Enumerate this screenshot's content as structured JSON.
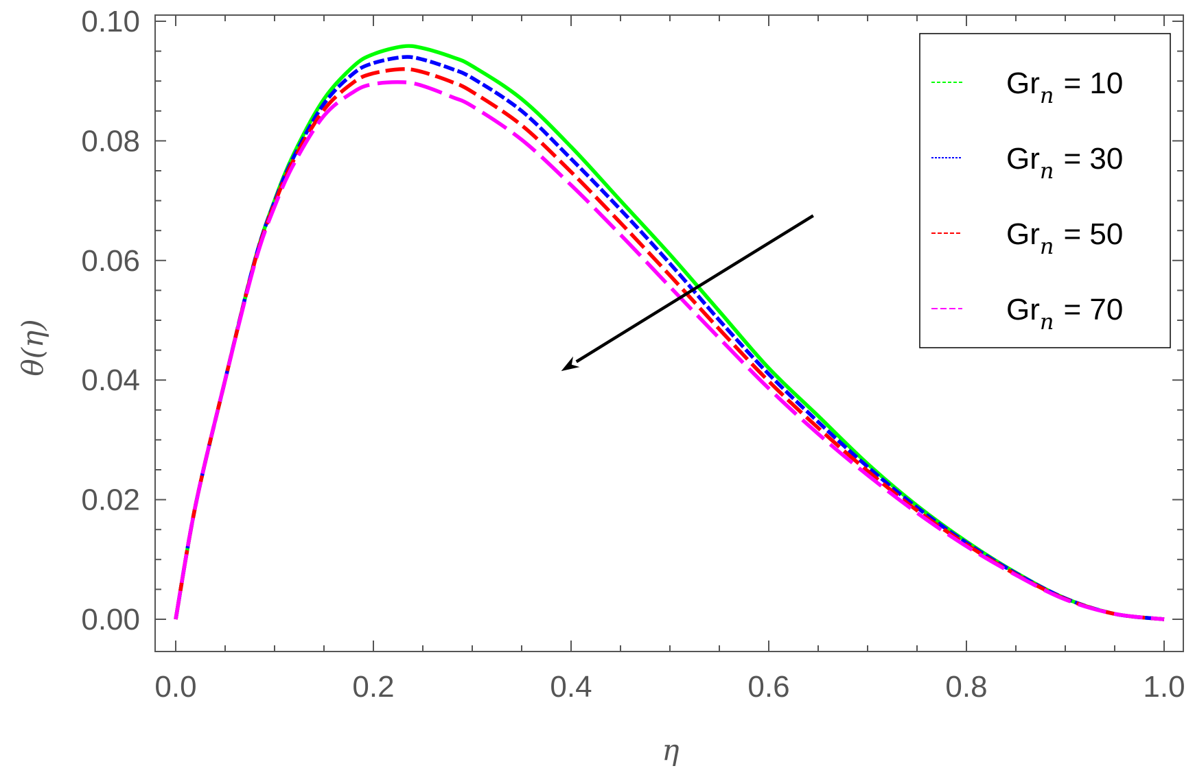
{
  "chart_data": {
    "type": "line",
    "title": "",
    "xlabel": "η",
    "ylabel": "θ(η)",
    "xlim": [
      0.0,
      1.0
    ],
    "ylim": [
      0.0,
      0.1
    ],
    "x_ticks": [
      "0.0",
      "0.2",
      "0.4",
      "0.6",
      "0.8",
      "1.0"
    ],
    "y_ticks": [
      "0.00",
      "0.02",
      "0.04",
      "0.06",
      "0.08",
      "0.10"
    ],
    "grid": false,
    "legend_position": "top-right",
    "x": [
      0.0,
      0.02,
      0.05,
      0.08,
      0.1,
      0.12,
      0.15,
      0.18,
      0.2,
      0.23,
      0.25,
      0.28,
      0.3,
      0.35,
      0.4,
      0.45,
      0.5,
      0.55,
      0.6,
      0.65,
      0.7,
      0.75,
      0.8,
      0.85,
      0.9,
      0.95,
      1.0
    ],
    "series": [
      {
        "name_base": "Gr",
        "name_sub": "n",
        "name_value": "= 10",
        "color": "#00ff00",
        "dash": "solid",
        "values": [
          0.0,
          0.019,
          0.04,
          0.06,
          0.07,
          0.078,
          0.087,
          0.0925,
          0.0945,
          0.0958,
          0.0955,
          0.094,
          0.0925,
          0.087,
          0.079,
          0.07,
          0.061,
          0.0515,
          0.042,
          0.034,
          0.026,
          0.019,
          0.013,
          0.0078,
          0.0035,
          0.0009,
          0.0
        ]
      },
      {
        "name_base": "Gr",
        "name_sub": "n",
        "name_value": "= 30",
        "color": "#0000ff",
        "dash": "short",
        "values": [
          0.0,
          0.019,
          0.04,
          0.06,
          0.0698,
          0.0775,
          0.0862,
          0.0913,
          0.093,
          0.094,
          0.0936,
          0.092,
          0.0905,
          0.085,
          0.077,
          0.0685,
          0.0595,
          0.05,
          0.041,
          0.033,
          0.0255,
          0.0187,
          0.0128,
          0.0077,
          0.0035,
          0.0009,
          0.0
        ]
      },
      {
        "name_base": "Gr",
        "name_sub": "n",
        "name_value": "= 50",
        "color": "#ff0000",
        "dash": "medium",
        "values": [
          0.0,
          0.019,
          0.04,
          0.0598,
          0.0695,
          0.077,
          0.0852,
          0.0898,
          0.0913,
          0.092,
          0.0915,
          0.0898,
          0.0882,
          0.0826,
          0.0748,
          0.0663,
          0.0575,
          0.0485,
          0.0398,
          0.032,
          0.0248,
          0.0182,
          0.0125,
          0.0075,
          0.0034,
          0.0009,
          0.0
        ]
      },
      {
        "name_base": "Gr",
        "name_sub": "n",
        "name_value": "= 70",
        "color": "#ff00ff",
        "dash": "long",
        "values": [
          0.0,
          0.019,
          0.04,
          0.0595,
          0.069,
          0.0763,
          0.0842,
          0.0882,
          0.0895,
          0.0898,
          0.0892,
          0.0873,
          0.0858,
          0.0802,
          0.0726,
          0.0643,
          0.0556,
          0.047,
          0.0386,
          0.031,
          0.0241,
          0.0178,
          0.0122,
          0.0074,
          0.0033,
          0.0009,
          0.0
        ]
      }
    ],
    "annotations": [
      {
        "type": "arrow",
        "from": [
          0.645,
          0.0675
        ],
        "to": [
          0.39,
          0.0415
        ],
        "color": "#000000"
      }
    ]
  }
}
